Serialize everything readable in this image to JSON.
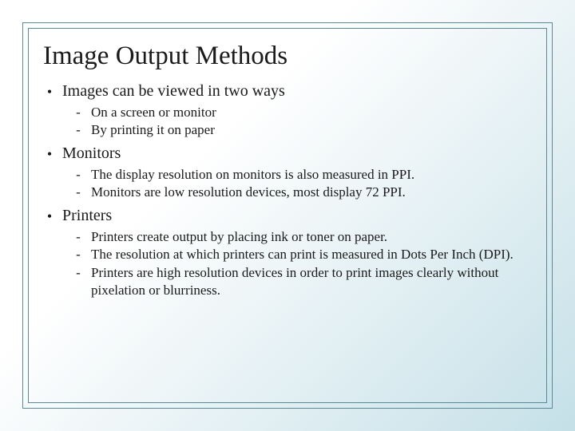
{
  "slide": {
    "title": "Image Output Methods",
    "bullets": [
      {
        "text": "Images can be viewed in two ways",
        "sub": [
          "On a screen or monitor",
          "By printing it on paper"
        ]
      },
      {
        "text": "Monitors",
        "sub": [
          "The display resolution on monitors is also measured in PPI.",
          "Monitors are low resolution devices, most display 72 PPI."
        ]
      },
      {
        "text": "Printers",
        "sub": [
          "Printers create output by placing ink or toner on paper.",
          "The resolution at which printers can print is measured in Dots Per Inch (DPI).",
          "Printers are high resolution devices in order to print images clearly without pixelation or blurriness."
        ]
      }
    ],
    "colors": {
      "border": "#5a8a95",
      "text": "#1a1a1a",
      "bg_start": "#ffffff",
      "bg_end": "#c5e0e8"
    },
    "glyphs": {
      "level1_bullet": "•",
      "level2_bullet": "-"
    }
  }
}
